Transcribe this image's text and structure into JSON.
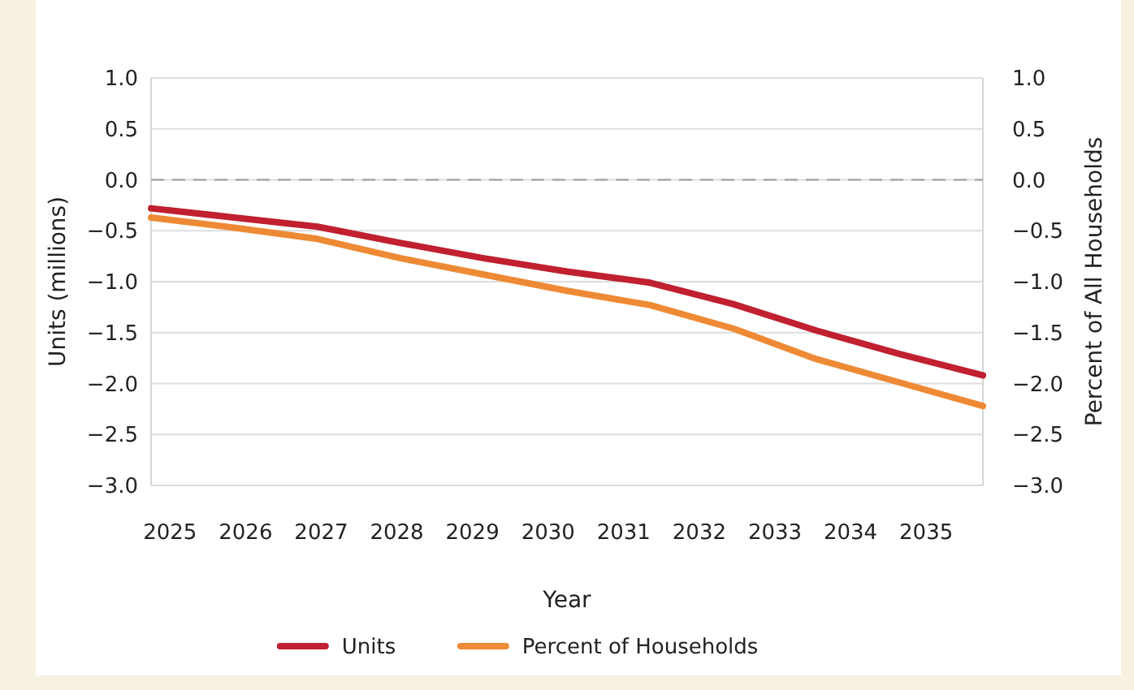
{
  "chart_data": {
    "type": "line",
    "xlabel": "Year",
    "ylabel": "Units (millions)",
    "y2label": "Percent of All Households",
    "x": [
      2024.75,
      2025.85,
      2026.95,
      2028.05,
      2029.15,
      2030.25,
      2031.35,
      2032.45,
      2033.55,
      2034.65,
      2035.75
    ],
    "xlim": [
      2024.75,
      2035.75
    ],
    "xticks": [
      2025,
      2026,
      2027,
      2028,
      2029,
      2030,
      2031,
      2032,
      2033,
      2034,
      2035
    ],
    "ylim": [
      -3,
      1
    ],
    "yticks": [
      {
        "value": 1,
        "label": "1.0"
      },
      {
        "value": 0.5,
        "label": "0.5"
      },
      {
        "value": 0,
        "label": "0.0"
      },
      {
        "value": -0.5,
        "label": "−0.5"
      },
      {
        "value": -1,
        "label": "−1.0"
      },
      {
        "value": -1.5,
        "label": "−1.5"
      },
      {
        "value": -2,
        "label": "−2.0"
      },
      {
        "value": -2.5,
        "label": "−2.5"
      },
      {
        "value": -3,
        "label": "−3.0"
      }
    ],
    "y2lim": [
      -3,
      1
    ],
    "y2ticks": [
      {
        "value": 1,
        "label": "1.0"
      },
      {
        "value": 0.5,
        "label": "0.5"
      },
      {
        "value": 0,
        "label": "0.0"
      },
      {
        "value": -0.5,
        "label": "−0.5"
      },
      {
        "value": -1,
        "label": "−1.0"
      },
      {
        "value": -1.5,
        "label": "−1.5"
      },
      {
        "value": -2,
        "label": "−2.0"
      },
      {
        "value": -2.5,
        "label": "−2.5"
      },
      {
        "value": -3,
        "label": "−3.0"
      }
    ],
    "series": [
      {
        "name": "Units",
        "color": "#c0202f",
        "values": [
          -0.28,
          -0.37,
          -0.46,
          -0.62,
          -0.77,
          -0.9,
          -1.01,
          -1.22,
          -1.48,
          -1.71,
          -1.92
        ]
      },
      {
        "name": "Percent of Households",
        "color": "#ee8a35",
        "values": [
          -0.37,
          -0.47,
          -0.58,
          -0.77,
          -0.93,
          -1.09,
          -1.23,
          -1.46,
          -1.76,
          -1.99,
          -2.22
        ]
      }
    ],
    "ref_lines": [
      {
        "axis": "y",
        "value": 0,
        "color": "#aaaaaa",
        "line_style": "dashed"
      }
    ],
    "grid": "y",
    "legend": "bottom",
    "marker": "none",
    "line_style": "solid"
  }
}
